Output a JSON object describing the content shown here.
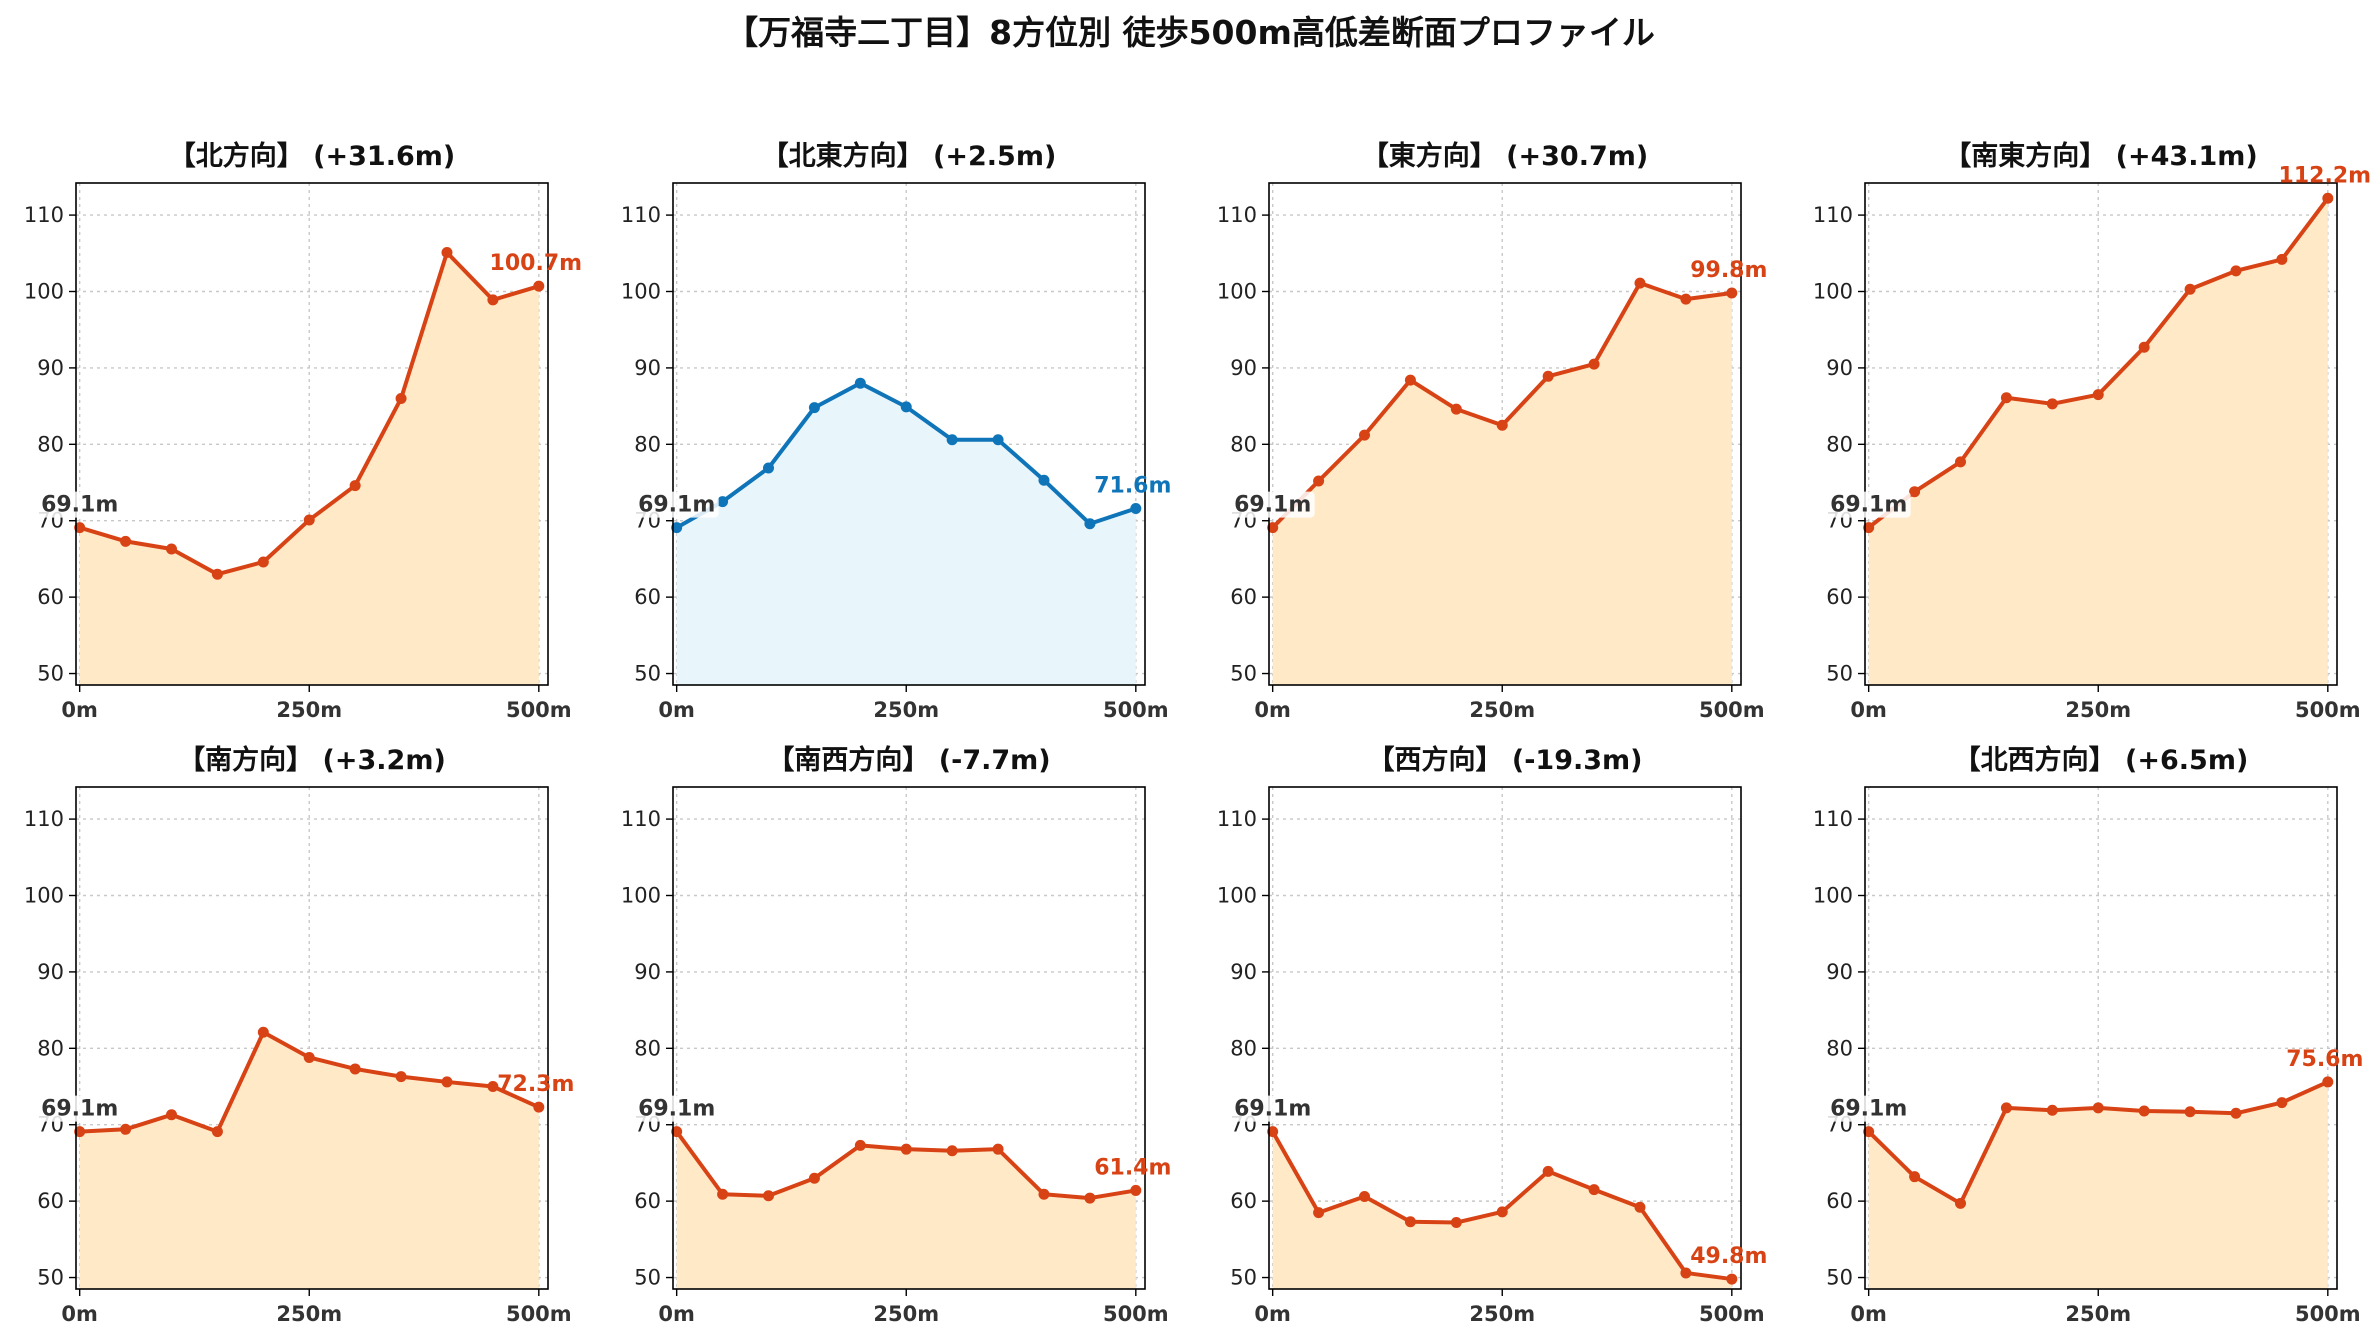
{
  "title": "【万福寺二丁目】8方位別 徒歩500m高低差断面プロファイル",
  "colors": {
    "up_line": "#d84315",
    "up_fill": "#ffe9c7",
    "down_line": "#0f75b8",
    "down_fill": "#e8f5fb",
    "grid": "#c8c8c8",
    "start_label": "#333333"
  },
  "chart_data": [
    {
      "type": "area",
      "title": "【北方向】 (+31.6m)",
      "style": "up",
      "x": [
        0,
        50,
        100,
        150,
        200,
        250,
        300,
        350,
        400,
        450,
        500
      ],
      "y": [
        69.1,
        67.3,
        66.3,
        63.0,
        64.6,
        70.1,
        74.6,
        86.0,
        105.1,
        98.9,
        100.7
      ],
      "start_label": "69.1m",
      "end_label": "100.7m",
      "xticks": [
        {
          "v": 0,
          "label": "0m"
        },
        {
          "v": 250,
          "label": "250m"
        },
        {
          "v": 500,
          "label": "500m"
        }
      ],
      "yticks": [
        50,
        60,
        70,
        80,
        90,
        100,
        110
      ],
      "ylim": [
        48.5,
        114.2
      ],
      "xlim": [
        -4,
        510
      ],
      "grid": true
    },
    {
      "type": "area",
      "title": "【北東方向】 (+2.5m)",
      "style": "down",
      "x": [
        0,
        50,
        100,
        150,
        200,
        250,
        300,
        350,
        400,
        450,
        500
      ],
      "y": [
        69.1,
        72.5,
        76.9,
        84.8,
        88.0,
        84.9,
        80.6,
        80.6,
        75.3,
        69.6,
        71.6
      ],
      "start_label": "69.1m",
      "end_label": "71.6m",
      "xticks": [
        {
          "v": 0,
          "label": "0m"
        },
        {
          "v": 250,
          "label": "250m"
        },
        {
          "v": 500,
          "label": "500m"
        }
      ],
      "yticks": [
        50,
        60,
        70,
        80,
        90,
        100,
        110
      ],
      "ylim": [
        48.5,
        114.2
      ],
      "xlim": [
        -4,
        510
      ],
      "grid": true
    },
    {
      "type": "area",
      "title": "【東方向】 (+30.7m)",
      "style": "up",
      "x": [
        0,
        50,
        100,
        150,
        200,
        250,
        300,
        350,
        400,
        450,
        500
      ],
      "y": [
        69.1,
        75.2,
        81.2,
        88.4,
        84.6,
        82.5,
        88.9,
        90.5,
        101.1,
        99.0,
        99.8
      ],
      "start_label": "69.1m",
      "end_label": "99.8m",
      "xticks": [
        {
          "v": 0,
          "label": "0m"
        },
        {
          "v": 250,
          "label": "250m"
        },
        {
          "v": 500,
          "label": "500m"
        }
      ],
      "yticks": [
        50,
        60,
        70,
        80,
        90,
        100,
        110
      ],
      "ylim": [
        48.5,
        114.2
      ],
      "xlim": [
        -4,
        510
      ],
      "grid": true
    },
    {
      "type": "area",
      "title": "【南東方向】 (+43.1m)",
      "style": "up",
      "x": [
        0,
        50,
        100,
        150,
        200,
        250,
        300,
        350,
        400,
        450,
        500
      ],
      "y": [
        69.1,
        73.8,
        77.7,
        86.1,
        85.3,
        86.5,
        92.7,
        100.3,
        102.7,
        104.2,
        112.2
      ],
      "start_label": "69.1m",
      "end_label": "112.2m",
      "xticks": [
        {
          "v": 0,
          "label": "0m"
        },
        {
          "v": 250,
          "label": "250m"
        },
        {
          "v": 500,
          "label": "500m"
        }
      ],
      "yticks": [
        50,
        60,
        70,
        80,
        90,
        100,
        110
      ],
      "ylim": [
        48.5,
        114.2
      ],
      "xlim": [
        -4,
        510
      ],
      "grid": true
    },
    {
      "type": "area",
      "title": "【南方向】 (+3.2m)",
      "style": "up",
      "x": [
        0,
        50,
        100,
        150,
        200,
        250,
        300,
        350,
        400,
        450,
        500
      ],
      "y": [
        69.1,
        69.4,
        71.3,
        69.1,
        82.1,
        78.8,
        77.3,
        76.3,
        75.6,
        75.0,
        72.3
      ],
      "start_label": "69.1m",
      "end_label": "72.3m",
      "xticks": [
        {
          "v": 0,
          "label": "0m"
        },
        {
          "v": 250,
          "label": "250m"
        },
        {
          "v": 500,
          "label": "500m"
        }
      ],
      "yticks": [
        50,
        60,
        70,
        80,
        90,
        100,
        110
      ],
      "ylim": [
        48.5,
        114.2
      ],
      "xlim": [
        -4,
        510
      ],
      "grid": true
    },
    {
      "type": "area",
      "title": "【南西方向】 (-7.7m)",
      "style": "up",
      "x": [
        0,
        50,
        100,
        150,
        200,
        250,
        300,
        350,
        400,
        450,
        500
      ],
      "y": [
        69.1,
        60.9,
        60.7,
        63.0,
        67.3,
        66.8,
        66.6,
        66.8,
        60.9,
        60.4,
        61.4
      ],
      "start_label": "69.1m",
      "end_label": "61.4m",
      "xticks": [
        {
          "v": 0,
          "label": "0m"
        },
        {
          "v": 250,
          "label": "250m"
        },
        {
          "v": 500,
          "label": "500m"
        }
      ],
      "yticks": [
        50,
        60,
        70,
        80,
        90,
        100,
        110
      ],
      "ylim": [
        48.5,
        114.2
      ],
      "xlim": [
        -4,
        510
      ],
      "grid": true
    },
    {
      "type": "area",
      "title": "【西方向】 (-19.3m)",
      "style": "up",
      "x": [
        0,
        50,
        100,
        150,
        200,
        250,
        300,
        350,
        400,
        450,
        500
      ],
      "y": [
        69.1,
        58.5,
        60.6,
        57.3,
        57.2,
        58.6,
        63.9,
        61.5,
        59.2,
        50.6,
        49.8
      ],
      "start_label": "69.1m",
      "end_label": "49.8m",
      "xticks": [
        {
          "v": 0,
          "label": "0m"
        },
        {
          "v": 250,
          "label": "250m"
        },
        {
          "v": 500,
          "label": "500m"
        }
      ],
      "yticks": [
        50,
        60,
        70,
        80,
        90,
        100,
        110
      ],
      "ylim": [
        48.5,
        114.2
      ],
      "xlim": [
        -4,
        510
      ],
      "grid": true
    },
    {
      "type": "area",
      "title": "【北西方向】 (+6.5m)",
      "style": "up",
      "x": [
        0,
        50,
        100,
        150,
        200,
        250,
        300,
        350,
        400,
        450,
        500
      ],
      "y": [
        69.1,
        63.2,
        59.7,
        72.2,
        71.9,
        72.2,
        71.8,
        71.7,
        71.5,
        72.9,
        75.6
      ],
      "start_label": "69.1m",
      "end_label": "75.6m",
      "xticks": [
        {
          "v": 0,
          "label": "0m"
        },
        {
          "v": 250,
          "label": "250m"
        },
        {
          "v": 500,
          "label": "500m"
        }
      ],
      "yticks": [
        50,
        60,
        70,
        80,
        90,
        100,
        110
      ],
      "ylim": [
        48.5,
        114.2
      ],
      "xlim": [
        -4,
        510
      ],
      "grid": true
    }
  ]
}
